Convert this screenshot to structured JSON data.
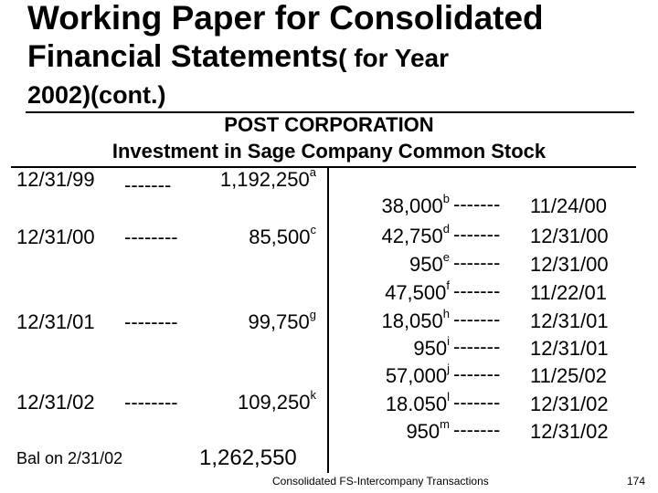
{
  "title": {
    "line1": "Working Paper for Consolidated",
    "line2_main": "Financial Statements",
    "line2_tail": "( for Year",
    "line3": "2002)(cont.)"
  },
  "account": {
    "company": "POST CORPORATION",
    "name": "Investment in Sage Company Common Stock"
  },
  "debits": [
    {
      "date": "12/31/99",
      "dashes": "-------",
      "amount": "1,192,250",
      "note": "a"
    },
    {
      "date": "12/31/00",
      "dashes": "--------",
      "amount": "85,500",
      "note": "c"
    },
    {
      "date": "12/31/01",
      "dashes": "--------",
      "amount": "99,750",
      "note": "g"
    },
    {
      "date": "12/31/02",
      "dashes": "--------",
      "amount": "109,250",
      "note": "k"
    }
  ],
  "credits": [
    {
      "amount": "38,000",
      "note": "b",
      "dashes": "-------",
      "date": "11/24/00"
    },
    {
      "amount": "42,750",
      "note": "d",
      "dashes": "-------",
      "date": "12/31/00"
    },
    {
      "amount": "950",
      "note": "e",
      "dashes": "-------",
      "date": "12/31/00"
    },
    {
      "amount": "47,500",
      "note": "f",
      "dashes": "-------",
      "date": "11/22/01"
    },
    {
      "amount": "18,050",
      "note": "h",
      "dashes": "-------",
      "date": "12/31/01"
    },
    {
      "amount": "950",
      "note": "i",
      "dashes": "-------",
      "date": "12/31/01"
    },
    {
      "amount": "57,000",
      "note": "j",
      "dashes": "-------",
      "date": "11/25/02"
    },
    {
      "amount": "18.050",
      "note": "l",
      "dashes": "-------",
      "date": "12/31/02"
    },
    {
      "amount": "950",
      "note": "m",
      "dashes": "-------",
      "date": "12/31/02"
    }
  ],
  "balance": {
    "label": "Bal on 2/31/02",
    "amount": "1,262,550"
  },
  "footer": {
    "text": "Consolidated FS-Intercompany  Transactions",
    "page": "174"
  }
}
